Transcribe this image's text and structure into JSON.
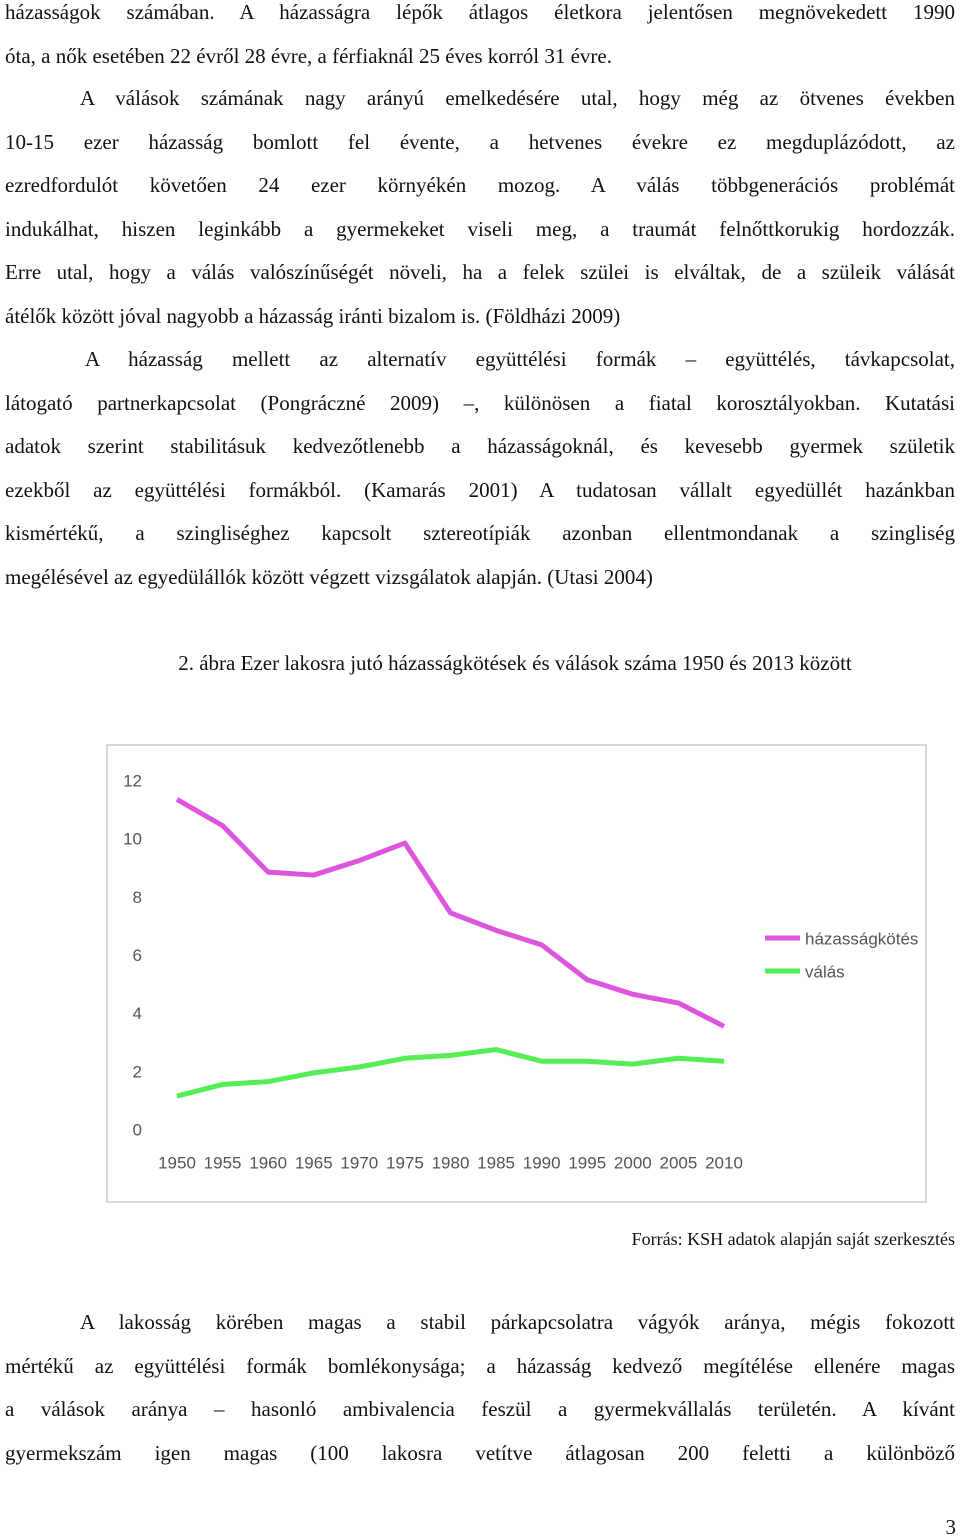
{
  "paragraphs": [
    {
      "lines": [
        "házasságok számában. A házasságra lépők átlagos életkora jelentősen megnövekedett 1990",
        "óta, a nők esetében 22 évről 28 évre, a férfiaknál 25 éves korról 31 évre."
      ]
    },
    {
      "lines": [
        "A válások számának nagy arányú emelkedésére utal, hogy még az ötvenes években",
        "10-15 ezer házasság bomlott fel évente, a hetvenes évekre ez megduplázódott, az",
        "ezredfordulót követően 24 ezer környékén mozog. A válás többgenerációs problémát",
        "indukálhat, hiszen leginkább a gyermekeket viseli meg, a traumát felnőttkorukig hordozzák.",
        "Erre utal, hogy a válás valószínűségét növeli, ha a felek szülei is elváltak, de a szüleik válását",
        "átélők között jóval nagyobb a házasság iránti bizalom is. (Földházi 2009)"
      ]
    },
    {
      "lines": [
        "A házasság mellett az alternatív együttélési formák – együttélés, távkapcsolat,",
        "látogató partnerkapcsolat (Pongráczné 2009) –, különösen a fiatal korosztályokban. Kutatási",
        "adatok szerint stabilitásuk kedvezőtlenebb a házasságoknál, és kevesebb gyermek születik",
        "ezekből az együttélési formákból. (Kamarás 2001) A tudatosan vállalt egyedüllét hazánkban",
        "kismértékű, a szingliséghez kapcsolt sztereotípiák azonban ellentmondanak a szingliség",
        "megélésével az egyedülállók között végzett vizsgálatok alapján. (Utasi 2004)"
      ]
    },
    {
      "lines": [
        "A lakosság körében magas a stabil párkapcsolatra vágyók aránya, mégis fokozott",
        "mértékű az együttélési formák bomlékonysága; a házasság kedvező megítélése ellenére magas",
        "a válások aránya – hasonló ambivalencia feszül a gyermekvállalás területén. A kívánt",
        "gyermekszám igen magas (100 lakosra vetítve átlagosan 200 feletti a különböző"
      ]
    }
  ],
  "figure": {
    "caption": "2. ábra Ezer lakosra jutó házasságkötések és válások száma 1950 és 2013 között",
    "source": "Forrás: KSH adatok alapján saját szerkesztés"
  },
  "chart_data": {
    "type": "line",
    "x": [
      1950,
      1955,
      1960,
      1965,
      1970,
      1975,
      1980,
      1985,
      1990,
      1995,
      2000,
      2005,
      2010
    ],
    "xlim": [
      1950,
      2010
    ],
    "xticks": [
      1950,
      1955,
      1960,
      1965,
      1970,
      1975,
      1980,
      1985,
      1990,
      1995,
      2000,
      2005,
      2010
    ],
    "ylim": [
      0,
      12
    ],
    "yticks": [
      0,
      2,
      4,
      6,
      8,
      10,
      12
    ],
    "legend": "right",
    "series": [
      {
        "name": "házasságkötés",
        "color": "#dd55dd",
        "values": [
          11.4,
          10.5,
          8.9,
          8.8,
          9.3,
          9.9,
          7.5,
          6.9,
          6.4,
          5.2,
          4.7,
          4.4,
          3.6
        ]
      },
      {
        "name": "válás",
        "color": "#55ee55",
        "values": [
          1.2,
          1.6,
          1.7,
          2.0,
          2.2,
          2.5,
          2.6,
          2.8,
          2.4,
          2.4,
          2.3,
          2.5,
          2.4
        ]
      }
    ]
  },
  "page_number": "3"
}
